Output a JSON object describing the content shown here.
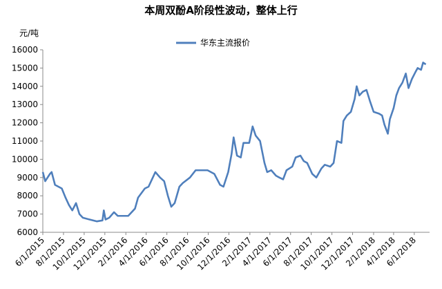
{
  "chart_data": {
    "type": "line",
    "title": "本周双酚A阶段性波动，整体上行",
    "y_label": "元/吨",
    "x": [
      "6/1/2015",
      "6/8/2015",
      "6/22/2015",
      "6/27/2015",
      "7/7/2015",
      "7/27/2015",
      "8/7/2015",
      "8/17/2015",
      "8/27/2015",
      "9/7/2015",
      "9/17/2015",
      "9/27/2015",
      "10/17/2015",
      "11/7/2015",
      "11/24/2015",
      "11/28/2015",
      "12/3/2015",
      "12/14/2015",
      "12/28/2015",
      "1/8/2016",
      "2/8/2016",
      "2/28/2016",
      "3/8/2016",
      "3/28/2016",
      "4/8/2016",
      "4/18/2016",
      "4/28/2016",
      "5/12/2016",
      "5/24/2016",
      "6/4/2016",
      "6/14/2016",
      "6/24/2016",
      "7/8/2016",
      "7/18/2016",
      "8/8/2016",
      "8/25/2016",
      "9/8/2016",
      "9/29/2016",
      "10/9/2016",
      "10/19/2016",
      "11/5/2016",
      "11/15/2016",
      "11/29/2016",
      "12/9/2016",
      "12/15/2016",
      "12/25/2016",
      "1/5/2017",
      "1/13/2017",
      "1/30/2017",
      "2/9/2017",
      "2/18/2017",
      "3/3/2017",
      "3/16/2017",
      "3/24/2017",
      "4/5/2017",
      "4/19/2017",
      "4/29/2017",
      "5/10/2017",
      "5/20/2017",
      "6/6/2017",
      "6/16/2017",
      "6/30/2017",
      "7/10/2017",
      "7/20/2017",
      "8/4/2017",
      "8/16/2017",
      "8/31/2017",
      "9/10/2017",
      "9/26/2017",
      "10/6/2017",
      "10/16/2017",
      "10/29/2017",
      "11/4/2017",
      "11/14/2017",
      "11/26/2017",
      "12/7/2017",
      "12/13/2017",
      "12/21/2017",
      "12/31/2017",
      "1/11/2018",
      "1/21/2018",
      "2/1/2018",
      "2/17/2018",
      "2/26/2018",
      "3/5/2018",
      "3/15/2018",
      "3/21/2018",
      "4/1/2018",
      "4/9/2018",
      "4/17/2018",
      "4/27/2018",
      "5/7/2018",
      "5/15/2018",
      "5/25/2018",
      "6/5/2018",
      "6/11/2018",
      "6/21/2018",
      "6/27/2018",
      "7/5/2018"
    ],
    "series": [
      {
        "name": "华东主流报价",
        "color": "#4f7fbc",
        "values": [
          9300,
          8800,
          9200,
          9300,
          8600,
          8400,
          7900,
          7500,
          7200,
          7600,
          7000,
          6800,
          6700,
          6600,
          6650,
          7200,
          6700,
          6800,
          7100,
          6900,
          6900,
          7300,
          7900,
          8400,
          8500,
          8900,
          9300,
          9000,
          8800,
          8000,
          7400,
          7600,
          8500,
          8700,
          9000,
          9400,
          9400,
          9400,
          9300,
          9200,
          8600,
          8500,
          9300,
          10300,
          11200,
          10200,
          10100,
          10900,
          10900,
          11800,
          11300,
          11000,
          9800,
          9300,
          9400,
          9100,
          9000,
          8900,
          9400,
          9600,
          10100,
          10200,
          9900,
          9800,
          9200,
          9000,
          9500,
          9700,
          9600,
          9800,
          11000,
          10900,
          12100,
          12400,
          12600,
          13300,
          14000,
          13500,
          13700,
          13800,
          13200,
          12600,
          12500,
          12400,
          11900,
          11400,
          12200,
          12800,
          13500,
          13900,
          14200,
          14700,
          13900,
          14400,
          14800,
          15000,
          14900,
          15300,
          15200
        ]
      }
    ],
    "xlim": [
      "6/1/2015",
      "7/10/2018"
    ],
    "xticks": [
      "6/1/2015",
      "8/1/2015",
      "10/1/2015",
      "12/1/2015",
      "2/1/2016",
      "4/1/2016",
      "6/1/2016",
      "8/1/2016",
      "10/1/2016",
      "12/1/2016",
      "2/1/2017",
      "4/1/2017",
      "6/1/2017",
      "8/1/2017",
      "10/1/2017",
      "12/1/2017",
      "2/1/2018",
      "4/1/2018",
      "6/1/2018"
    ],
    "ylim": [
      6000,
      16000
    ],
    "yticks": [
      6000,
      7000,
      8000,
      9000,
      10000,
      11000,
      12000,
      13000,
      14000,
      15000,
      16000
    ],
    "grid": false,
    "legend": "top"
  }
}
